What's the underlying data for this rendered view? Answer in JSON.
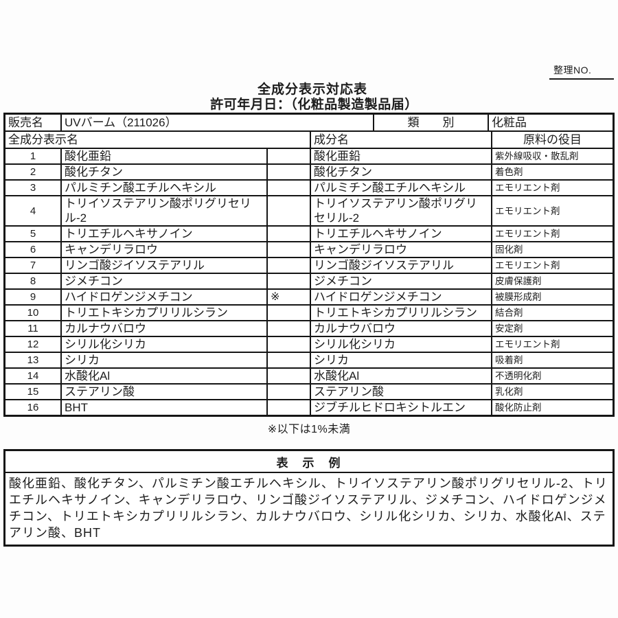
{
  "page": {
    "ref_label": "整理NO.",
    "title": "全成分表示対応表",
    "subtitle": "許可年月日：（化粧品製造製品届）",
    "footnote": "※以下は1%未満"
  },
  "product_header": {
    "sales_name_label": "販売名",
    "sales_name_value": "UVバーム（211026）",
    "category_label": "類　　別",
    "category_value": "化粧品"
  },
  "columns": {
    "display_name": "全成分表示名",
    "ingredient_name": "成分名",
    "role": "原料の役目"
  },
  "rows": [
    {
      "no": "1",
      "display": "酸化亜鉛",
      "mark": "",
      "ingredient": "酸化亜鉛",
      "role": "紫外線吸収・散乱剤"
    },
    {
      "no": "2",
      "display": "酸化チタン",
      "mark": "",
      "ingredient": "酸化チタン",
      "role": "着色剤"
    },
    {
      "no": "3",
      "display": "パルミチン酸エチルヘキシル",
      "mark": "",
      "ingredient": "パルミチン酸エチルヘキシル",
      "role": "エモリエント剤"
    },
    {
      "no": "4",
      "display": "トリイソステアリン酸ポリグリセリル-2",
      "mark": "",
      "ingredient": "トリイソステアリン酸ポリグリセリル-2",
      "role": "エモリエント剤"
    },
    {
      "no": "5",
      "display": "トリエチルヘキサノイン",
      "mark": "",
      "ingredient": "トリエチルヘキサノイン",
      "role": "エモリエント剤"
    },
    {
      "no": "6",
      "display": "キャンデリラロウ",
      "mark": "",
      "ingredient": "キャンデリラロウ",
      "role": "固化剤"
    },
    {
      "no": "7",
      "display": "リンゴ酸ジイソステアリル",
      "mark": "",
      "ingredient": "リンゴ酸ジイソステアリル",
      "role": "エモリエント剤"
    },
    {
      "no": "8",
      "display": "ジメチコン",
      "mark": "",
      "ingredient": "ジメチコン",
      "role": "皮膚保護剤"
    },
    {
      "no": "9",
      "display": "ハイドロゲンジメチコン",
      "mark": "※",
      "ingredient": "ハイドロゲンジメチコン",
      "role": "被膜形成剤"
    },
    {
      "no": "10",
      "display": "トリエトキシカプリリルシラン",
      "mark": "",
      "ingredient": "トリエトキシカプリリルシラン",
      "role": "結合剤"
    },
    {
      "no": "11",
      "display": "カルナウバロウ",
      "mark": "",
      "ingredient": "カルナウバロウ",
      "role": "安定剤"
    },
    {
      "no": "12",
      "display": "シリル化シリカ",
      "mark": "",
      "ingredient": "シリル化シリカ",
      "role": "エモリエント剤"
    },
    {
      "no": "13",
      "display": "シリカ",
      "mark": "",
      "ingredient": "シリカ",
      "role": "吸着剤"
    },
    {
      "no": "14",
      "display": "水酸化Al",
      "mark": "",
      "ingredient": "水酸化Al",
      "role": "不透明化剤"
    },
    {
      "no": "15",
      "display": "ステアリン酸",
      "mark": "",
      "ingredient": "ステアリン酸",
      "role": "乳化剤"
    },
    {
      "no": "16",
      "display": "BHT",
      "mark": "",
      "ingredient": "ジブチルヒドロキシトルエン",
      "role": "酸化防止剤"
    }
  ],
  "example": {
    "title": "表　示　例",
    "text": "酸化亜鉛、酸化チタン、パルミチン酸エチルヘキシル、トリイソステアリン酸ポリグリセリル-2、トリエチルヘキサノイン、キャンデリラロウ、リンゴ酸ジイソステアリル、ジメチコン、ハイドロゲンジメチコン、トリエトキシカプリリルシラン、カルナウバロウ、シリル化シリカ、シリカ、水酸化Al、ステアリン酸、BHT"
  }
}
